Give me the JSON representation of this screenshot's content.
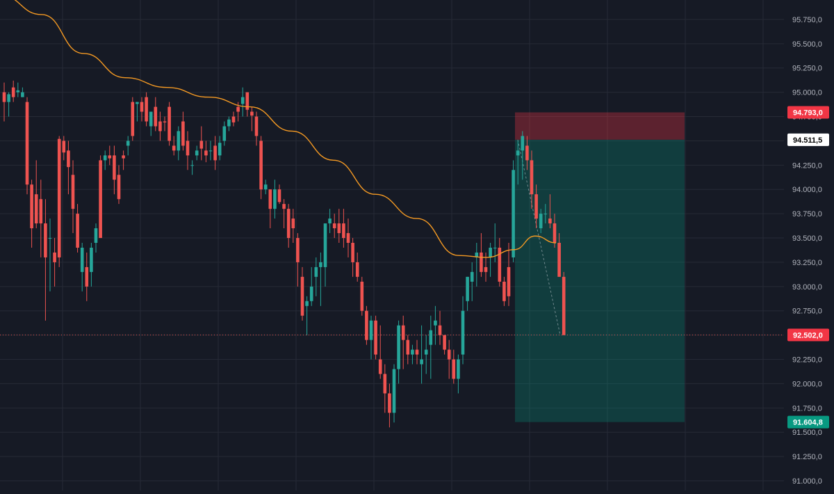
{
  "colors": {
    "background": "#161a25",
    "grid": "#262a36",
    "up": "#26a69a",
    "down": "#ef5350",
    "ma": "#f59a23",
    "stop_zone": "#f2364560",
    "target_zone": "#1b8c7a55",
    "current_line": "#ef5350"
  },
  "chart_data": {
    "type": "candlestick",
    "y_axis": {
      "min": 90900,
      "max": 95950,
      "ticks": [
        "95.750,0",
        "95.500,0",
        "95.250,0",
        "95.000,0",
        "94.750,0",
        "94.500,0",
        "94.250,0",
        "94.000,0",
        "93.750,0",
        "93.500,0",
        "93.250,0",
        "93.000,0",
        "92.750,0",
        "92.500,0",
        "92.250,0",
        "92.000,0",
        "91.750,0",
        "91.500,0",
        "91.250,0",
        "91.000,0"
      ],
      "tick_values": [
        95750,
        95500,
        95250,
        95000,
        94750,
        94500,
        94250,
        94000,
        93750,
        93500,
        93250,
        93000,
        92750,
        92500,
        92250,
        92000,
        91750,
        91500,
        91250,
        91000
      ]
    },
    "grid": true,
    "price_labels": {
      "stop": {
        "text": "94.793,0",
        "value": 94793
      },
      "entry": {
        "text": "94.511,5",
        "value": 94511.5
      },
      "current": {
        "text": "92.502,0",
        "value": 92502
      },
      "target": {
        "text": "91.604,8",
        "value": 91604.8
      }
    },
    "candles": [
      [
        95000,
        95100,
        94700,
        94900
      ],
      [
        94900,
        95000,
        94750,
        94980
      ],
      [
        95050,
        95120,
        94900,
        94950
      ],
      [
        95000,
        95100,
        94950,
        95020
      ],
      [
        94950,
        95050,
        94950,
        95000
      ],
      [
        94900,
        94950,
        93950,
        94050
      ],
      [
        94050,
        94100,
        93400,
        93600
      ],
      [
        93950,
        94300,
        93600,
        93650
      ],
      [
        93900,
        94100,
        93300,
        93650
      ],
      [
        93650,
        93900,
        92650,
        93300
      ],
      [
        93500,
        93700,
        92950,
        93500
      ],
      [
        93350,
        93500,
        93000,
        93250
      ],
      [
        94520,
        94550,
        93200,
        93300
      ],
      [
        94500,
        94550,
        94300,
        94380
      ],
      [
        94400,
        94500,
        93950,
        94230
      ],
      [
        94150,
        94300,
        93550,
        93800
      ],
      [
        93750,
        93850,
        93350,
        93400
      ],
      [
        93150,
        93450,
        92950,
        93400
      ],
      [
        93200,
        93350,
        92850,
        93000
      ],
      [
        93150,
        93450,
        93000,
        93400
      ],
      [
        93450,
        93650,
        93350,
        93600
      ],
      [
        94300,
        94350,
        93500,
        93500
      ],
      [
        94300,
        94400,
        94200,
        94350
      ],
      [
        94350,
        94450,
        94250,
        94320
      ],
      [
        94350,
        94450,
        93950,
        94100
      ],
      [
        94150,
        94250,
        93850,
        93900
      ],
      [
        94350,
        94400,
        94200,
        94320
      ],
      [
        94450,
        94550,
        94350,
        94500
      ],
      [
        94900,
        94950,
        94500,
        94550
      ],
      [
        94880,
        94900,
        94700,
        94900
      ],
      [
        94900,
        94950,
        94700,
        94800
      ],
      [
        94950,
        95000,
        94650,
        94700
      ],
      [
        94650,
        94800,
        94550,
        94800
      ],
      [
        94850,
        94950,
        94600,
        94650
      ],
      [
        94700,
        94800,
        94500,
        94600
      ],
      [
        94700,
        94750,
        94600,
        94690
      ],
      [
        94850,
        94900,
        94450,
        94500
      ],
      [
        94450,
        94550,
        94350,
        94400
      ],
      [
        94400,
        94650,
        94300,
        94600
      ],
      [
        94700,
        94800,
        94400,
        94450
      ],
      [
        94500,
        94600,
        94200,
        94350
      ],
      [
        94250,
        94300,
        94150,
        94250
      ],
      [
        94350,
        94450,
        94300,
        94400
      ],
      [
        94500,
        94650,
        94300,
        94420
      ],
      [
        94400,
        94500,
        94280,
        94350
      ],
      [
        94400,
        94500,
        94300,
        94400
      ],
      [
        94450,
        94550,
        94200,
        94300
      ],
      [
        94350,
        94550,
        94300,
        94480
      ],
      [
        94500,
        94700,
        94450,
        94650
      ],
      [
        94650,
        94750,
        94600,
        94720
      ],
      [
        94750,
        94800,
        94650,
        94690
      ],
      [
        94850,
        94900,
        94700,
        94800
      ],
      [
        94880,
        95050,
        94750,
        94950
      ],
      [
        95000,
        95000,
        94750,
        94820
      ],
      [
        94800,
        94850,
        94600,
        94760
      ],
      [
        94750,
        94800,
        94450,
        94550
      ],
      [
        94500,
        94550,
        93900,
        94000
      ],
      [
        94000,
        94100,
        93950,
        94050
      ],
      [
        94000,
        94000,
        93600,
        93800
      ],
      [
        93800,
        94100,
        93700,
        94000
      ],
      [
        94000,
        94050,
        93850,
        93870
      ],
      [
        93850,
        93900,
        93600,
        93800
      ],
      [
        93800,
        93850,
        93400,
        93500
      ],
      [
        93700,
        93800,
        93450,
        93600
      ],
      [
        93500,
        93550,
        93000,
        93250
      ],
      [
        93100,
        93200,
        92650,
        92700
      ],
      [
        92800,
        92900,
        92500,
        92850
      ],
      [
        92850,
        93200,
        92800,
        93000
      ],
      [
        93100,
        93300,
        92900,
        93200
      ],
      [
        93200,
        93350,
        92800,
        93250
      ],
      [
        93200,
        93600,
        93000,
        93650
      ],
      [
        93650,
        93800,
        93550,
        93700
      ],
      [
        93650,
        93750,
        93500,
        93600
      ],
      [
        93650,
        93800,
        93450,
        93550
      ],
      [
        93650,
        93800,
        93400,
        93500
      ],
      [
        93550,
        93700,
        93300,
        93450
      ],
      [
        93450,
        93500,
        93100,
        93250
      ],
      [
        93250,
        93350,
        93050,
        93100
      ],
      [
        93050,
        93100,
        92700,
        92750
      ],
      [
        92750,
        92800,
        92400,
        92450
      ],
      [
        92450,
        92700,
        92250,
        92650
      ],
      [
        92650,
        92700,
        92250,
        92300
      ],
      [
        92250,
        92600,
        92050,
        92100
      ],
      [
        92100,
        92200,
        91700,
        91900
      ],
      [
        91900,
        92000,
        91550,
        91700
      ],
      [
        91700,
        92200,
        91600,
        92150
      ],
      [
        92150,
        92650,
        92000,
        92600
      ],
      [
        92600,
        92700,
        92150,
        92450
      ],
      [
        92450,
        92500,
        92200,
        92300
      ],
      [
        92300,
        92400,
        92200,
        92350
      ],
      [
        92350,
        92450,
        92200,
        92300
      ],
      [
        92200,
        92600,
        92000,
        92250
      ],
      [
        92300,
        92500,
        92100,
        92350
      ],
      [
        92400,
        92700,
        92050,
        92550
      ],
      [
        92600,
        92800,
        92400,
        92650
      ],
      [
        92600,
        92750,
        92400,
        92500
      ],
      [
        92500,
        92500,
        92300,
        92350
      ],
      [
        92350,
        92450,
        92050,
        92250
      ],
      [
        92250,
        92350,
        92000,
        92050
      ],
      [
        92050,
        92300,
        91900,
        92250
      ],
      [
        92300,
        92900,
        92200,
        92750
      ],
      [
        92850,
        93100,
        92750,
        93100
      ],
      [
        93050,
        93250,
        92850,
        93150
      ],
      [
        93300,
        93450,
        93000,
        93350
      ],
      [
        93350,
        93550,
        93100,
        93150
      ],
      [
        93200,
        93350,
        93050,
        93150
      ],
      [
        93300,
        93450,
        93100,
        93400
      ],
      [
        93400,
        93650,
        93250,
        93400
      ],
      [
        93400,
        93500,
        93000,
        93050
      ],
      [
        93050,
        93100,
        92800,
        92850
      ],
      [
        93200,
        93450,
        92800,
        92900
      ],
      [
        93300,
        94300,
        93250,
        94200
      ],
      [
        94350,
        94500,
        94050,
        94400
      ],
      [
        94400,
        94600,
        94100,
        94550
      ],
      [
        94450,
        94550,
        94200,
        94300
      ],
      [
        94300,
        94400,
        93800,
        93950
      ],
      [
        93950,
        94050,
        93600,
        93700
      ],
      [
        93600,
        93800,
        93550,
        93750
      ],
      [
        93750,
        93850,
        93650,
        93750
      ],
      [
        93700,
        93950,
        93600,
        93650
      ],
      [
        93650,
        93750,
        93400,
        93450
      ],
      [
        93450,
        93550,
        93100,
        93100
      ],
      [
        93100,
        93150,
        92550,
        92500
      ]
    ],
    "moving_average": [
      [
        0,
        96000
      ],
      [
        60,
        95800
      ],
      [
        120,
        95400
      ],
      [
        180,
        95150
      ],
      [
        240,
        95050
      ],
      [
        300,
        94950
      ],
      [
        360,
        94850
      ],
      [
        420,
        94600
      ],
      [
        480,
        94300
      ],
      [
        540,
        93950
      ],
      [
        600,
        93700
      ],
      [
        660,
        93320
      ],
      [
        700,
        93300
      ],
      [
        740,
        93380
      ],
      [
        770,
        93520
      ],
      [
        800,
        93450
      ]
    ],
    "position": {
      "stop": 94793,
      "entry": 94511.5,
      "target": 91604.8,
      "current": 92502
    }
  }
}
